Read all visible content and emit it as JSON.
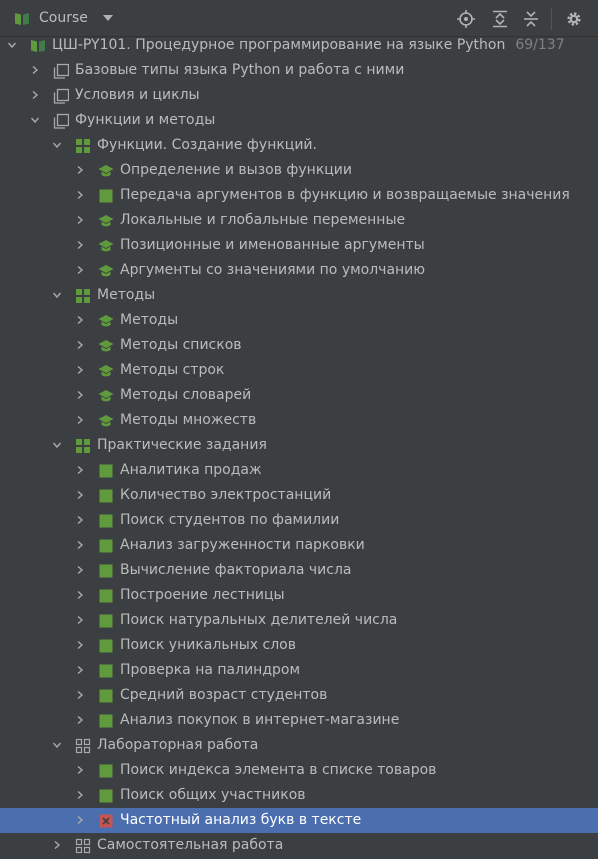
{
  "header": {
    "title": "Course",
    "icons": [
      "course-book-icon",
      "dropdown-arrow-icon",
      "locate-icon",
      "expand-all-icon",
      "collapse-all-icon",
      "settings-gear-icon"
    ]
  },
  "colors": {
    "background": "#3c3f41",
    "selection": "#4b6eaf",
    "green": "#5f9a3c",
    "failed": "#c75450",
    "text": "#bbbbbb",
    "muted": "#808080"
  },
  "tree": {
    "root": {
      "label": "ЦШ-PY101. Процедурное программирование на языке Python",
      "progress": "69/137"
    },
    "sections": [
      {
        "label": "Базовые типы языка Python и работа с ними"
      },
      {
        "label": "Условия и циклы"
      },
      {
        "label": "Функции и методы"
      }
    ],
    "lessons": [
      {
        "label": "Функции. Создание функций."
      },
      {
        "label": "Методы"
      },
      {
        "label": "Практические задания"
      },
      {
        "label": "Лабораторная работа"
      },
      {
        "label": "Самостоятельная работа"
      }
    ],
    "functions_tasks": [
      {
        "label": "Определение и вызов функции",
        "type": "theory"
      },
      {
        "label": "Передача аргументов в функцию и возвращаемые значения",
        "type": "solved"
      },
      {
        "label": "Локальные и глобальные переменные",
        "type": "theory"
      },
      {
        "label": "Позиционные и именованные аргументы",
        "type": "theory"
      },
      {
        "label": "Аргументы со значениями по умолчанию",
        "type": "theory"
      }
    ],
    "methods_tasks": [
      {
        "label": "Методы",
        "type": "theory"
      },
      {
        "label": "Методы списков",
        "type": "theory"
      },
      {
        "label": "Методы строк",
        "type": "theory"
      },
      {
        "label": "Методы словарей",
        "type": "theory"
      },
      {
        "label": "Методы множеств",
        "type": "theory"
      }
    ],
    "practice_tasks": [
      {
        "label": "Аналитика продаж",
        "type": "solved"
      },
      {
        "label": "Количество электростанций",
        "type": "solved"
      },
      {
        "label": "Поиск студентов по фамилии",
        "type": "solved"
      },
      {
        "label": "Анализ загруженности парковки",
        "type": "solved"
      },
      {
        "label": "Вычисление факториала числа",
        "type": "solved"
      },
      {
        "label": "Построение лестницы",
        "type": "solved"
      },
      {
        "label": "Поиск натуральных делителей числа",
        "type": "solved"
      },
      {
        "label": "Поиск уникальных слов",
        "type": "solved"
      },
      {
        "label": "Проверка на палиндром",
        "type": "solved"
      },
      {
        "label": "Средний возраст студентов",
        "type": "solved"
      },
      {
        "label": "Анализ покупок в интернет-магазине",
        "type": "solved"
      }
    ],
    "lab_tasks": [
      {
        "label": "Поиск индекса элемента в списке товаров",
        "type": "solved"
      },
      {
        "label": "Поиск общих участников",
        "type": "solved"
      },
      {
        "label": "Частотный анализ букв в тексте",
        "type": "failed",
        "selected": true
      }
    ]
  }
}
